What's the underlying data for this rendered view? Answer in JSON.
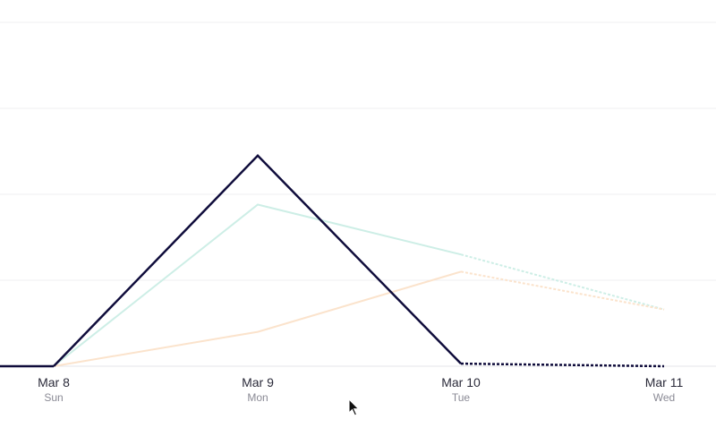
{
  "chart_data": {
    "type": "line",
    "x": [
      "Mar 8",
      "Mar 9",
      "Mar 10",
      "Mar 11"
    ],
    "x_day_labels": [
      "Sun",
      "Mon",
      "Tue",
      "Wed"
    ],
    "ylim": [
      0,
      4
    ],
    "gridlines": [
      0,
      1,
      2,
      3,
      4
    ],
    "grid": true,
    "legend": "none",
    "series": [
      {
        "color": "#0f0c3b",
        "values": [
          0,
          2.45,
          0.03,
          0
        ],
        "dashed_from_index": 2,
        "style": "solid"
      },
      {
        "color": "#cdeee6",
        "values": [
          0,
          1.88,
          1.3,
          0.66
        ],
        "dashed_from_index": 2,
        "style": "faint"
      },
      {
        "color": "#fbe3cc",
        "values": [
          0,
          0.4,
          1.1,
          0.66
        ],
        "dashed_from_index": 2,
        "style": "faint"
      }
    ]
  },
  "cursor_icon": "mouse-pointer-icon"
}
